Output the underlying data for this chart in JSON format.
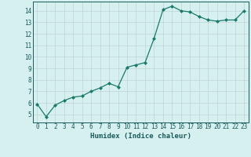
{
  "x": [
    0,
    1,
    2,
    3,
    4,
    5,
    6,
    7,
    8,
    9,
    10,
    11,
    12,
    13,
    14,
    15,
    16,
    17,
    18,
    19,
    20,
    21,
    22,
    23
  ],
  "y": [
    5.9,
    4.8,
    5.8,
    6.2,
    6.5,
    6.6,
    7.0,
    7.3,
    7.7,
    7.4,
    9.1,
    9.3,
    9.5,
    11.6,
    14.1,
    14.4,
    14.0,
    13.9,
    13.5,
    13.2,
    13.1,
    13.2,
    13.2,
    14.0
  ],
  "line_color": "#1a7a6a",
  "marker": "D",
  "marker_size": 2.0,
  "bg_color": "#d6f0f0",
  "grid_color": "#c0d4d4",
  "xlabel": "Humidex (Indice chaleur)",
  "xlim": [
    -0.5,
    23.5
  ],
  "ylim": [
    4.3,
    14.8
  ],
  "yticks": [
    5,
    6,
    7,
    8,
    9,
    10,
    11,
    12,
    13,
    14
  ],
  "xticks": [
    0,
    1,
    2,
    3,
    4,
    5,
    6,
    7,
    8,
    9,
    10,
    11,
    12,
    13,
    14,
    15,
    16,
    17,
    18,
    19,
    20,
    21,
    22,
    23
  ],
  "xlabel_fontsize": 6.5,
  "tick_fontsize": 5.5,
  "tick_color": "#1a5a5a",
  "spine_color": "#1a5a5a",
  "line_width": 0.9
}
